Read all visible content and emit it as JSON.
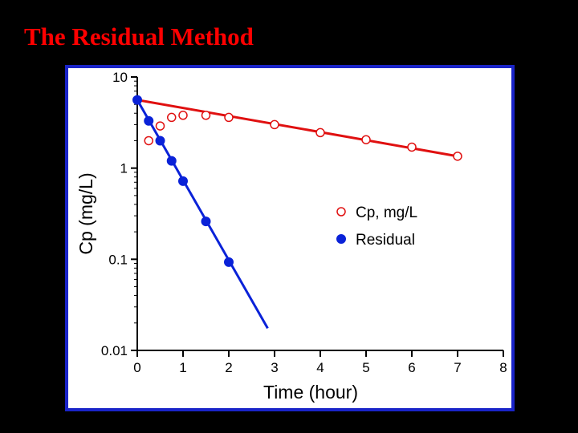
{
  "slide": {
    "title": "The Residual Method"
  },
  "colors": {
    "background": "#000000",
    "title": "#ff0000",
    "frame_border": "#1a24c8",
    "cp_series": "#e01010",
    "residual_series": "#0a22d8"
  },
  "chart_data": {
    "type": "scatter",
    "title": "",
    "xlabel": "Time (hour)",
    "ylabel": "Cp (mg/L)",
    "xlim": [
      0,
      8
    ],
    "ylim": [
      0.01,
      10
    ],
    "yscale": "log",
    "x_ticks": [
      0,
      1,
      2,
      3,
      4,
      5,
      6,
      7,
      8
    ],
    "x_tick_labels": [
      "0",
      "1",
      "2",
      "3",
      "4",
      "5",
      "6",
      "7",
      "8"
    ],
    "y_ticks": [
      0.01,
      0.1,
      1,
      10
    ],
    "y_tick_labels": [
      "0.01",
      "0.1",
      "1",
      "10"
    ],
    "grid": false,
    "legend_position": "right",
    "series": [
      {
        "name": "Cp, mg/L",
        "marker": "open-circle",
        "color": "#e01010",
        "points": [
          {
            "x": 0.25,
            "y": 2.0
          },
          {
            "x": 0.5,
            "y": 2.9
          },
          {
            "x": 0.75,
            "y": 3.6
          },
          {
            "x": 1.0,
            "y": 3.8
          },
          {
            "x": 1.5,
            "y": 3.8
          },
          {
            "x": 2.0,
            "y": 3.6
          },
          {
            "x": 3.0,
            "y": 3.0
          },
          {
            "x": 4.0,
            "y": 2.45
          },
          {
            "x": 5.0,
            "y": 2.05
          },
          {
            "x": 6.0,
            "y": 1.7
          },
          {
            "x": 7.0,
            "y": 1.35
          }
        ]
      },
      {
        "name": "Residual",
        "marker": "filled-circle",
        "color": "#0a22d8",
        "points": [
          {
            "x": 0.0,
            "y": 5.6
          },
          {
            "x": 0.25,
            "y": 3.3
          },
          {
            "x": 0.5,
            "y": 2.0
          },
          {
            "x": 0.75,
            "y": 1.2
          },
          {
            "x": 1.0,
            "y": 0.72
          },
          {
            "x": 1.5,
            "y": 0.26
          },
          {
            "x": 2.0,
            "y": 0.093
          }
        ]
      }
    ],
    "fit_lines": [
      {
        "series": "Cp, mg/L",
        "color": "#e01010",
        "x": [
          0,
          7
        ],
        "y": [
          5.6,
          1.35
        ]
      },
      {
        "series": "Residual",
        "color": "#0a22d8",
        "x": [
          0,
          2.85
        ],
        "y": [
          5.6,
          0.0175
        ]
      }
    ]
  }
}
